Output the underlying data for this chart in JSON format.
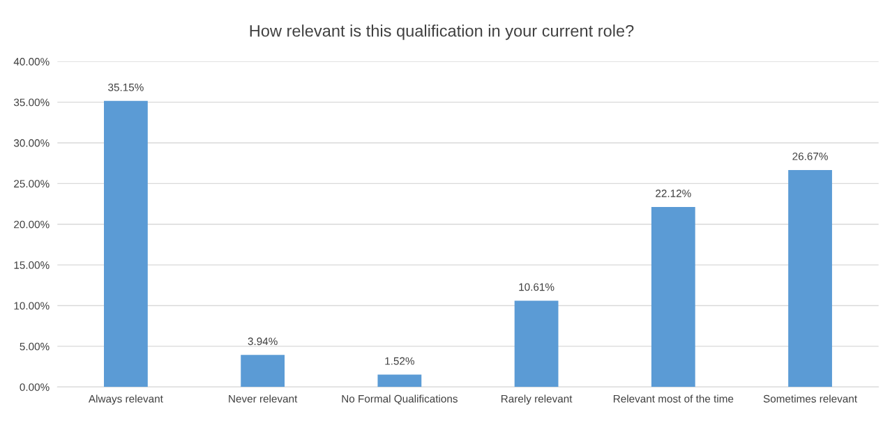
{
  "chart_data": {
    "type": "bar",
    "title": "How relevant is this qualification in your current role?",
    "categories": [
      "Always relevant",
      "Never relevant",
      "No Formal Qualifications",
      "Rarely relevant",
      "Relevant most of the time",
      "Sometimes relevant"
    ],
    "values": [
      35.15,
      3.94,
      1.52,
      10.61,
      22.12,
      26.67
    ],
    "value_labels": [
      "35.15%",
      "3.94%",
      "1.52%",
      "10.61%",
      "22.12%",
      "26.67%"
    ],
    "color": "#5b9bd5",
    "ylim": [
      0,
      40
    ],
    "yticks": [
      {
        "value": 0,
        "label": "0.00%"
      },
      {
        "value": 5,
        "label": "5.00%"
      },
      {
        "value": 10,
        "label": "10.00%"
      },
      {
        "value": 15,
        "label": "15.00%"
      },
      {
        "value": 20,
        "label": "20.00%"
      },
      {
        "value": 25,
        "label": "25.00%"
      },
      {
        "value": 30,
        "label": "30.00%"
      },
      {
        "value": 35,
        "label": "35.00%"
      },
      {
        "value": 40,
        "label": "40.00%"
      }
    ],
    "grid": "y",
    "legend": false
  }
}
